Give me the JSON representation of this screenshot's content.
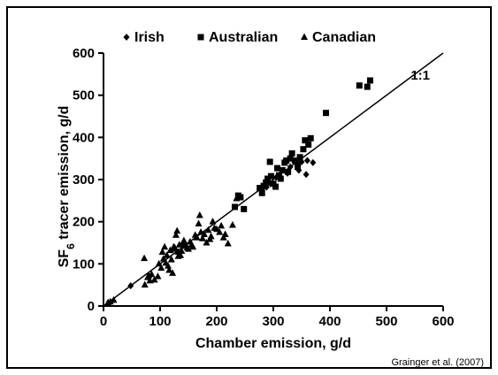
{
  "chart_data": {
    "type": "scatter",
    "xlabel": "Chamber emission, g/d",
    "ylabel_main": "SF",
    "ylabel_sub": "6",
    "ylabel_rest": " tracer emission, g/d",
    "xlim": [
      0,
      600
    ],
    "ylim": [
      0,
      600
    ],
    "xticks": [
      "0",
      "100",
      "200",
      "300",
      "400",
      "500",
      "600"
    ],
    "yticks": [
      "0",
      "100",
      "200",
      "300",
      "400",
      "500",
      "600"
    ],
    "grid": false,
    "legend_position": "top-left",
    "reference_line": {
      "label": "1:1",
      "from": [
        0,
        0
      ],
      "to": [
        600,
        600
      ]
    },
    "series": [
      {
        "name": "Irish",
        "marker": "diamond",
        "points": [
          [
            48,
            48
          ],
          [
            280,
            277
          ],
          [
            288,
            282
          ],
          [
            295,
            290
          ],
          [
            305,
            305
          ],
          [
            318,
            322
          ],
          [
            330,
            330
          ],
          [
            342,
            338
          ],
          [
            350,
            342
          ],
          [
            360,
            345
          ],
          [
            370,
            340
          ],
          [
            358,
            312
          ],
          [
            345,
            322
          ],
          [
            325,
            315
          ]
        ]
      },
      {
        "name": "Australian",
        "marker": "square",
        "points": [
          [
            232,
            235
          ],
          [
            238,
            262
          ],
          [
            242,
            258
          ],
          [
            248,
            230
          ],
          [
            276,
            280
          ],
          [
            280,
            268
          ],
          [
            283,
            285
          ],
          [
            287,
            293
          ],
          [
            290,
            302
          ],
          [
            294,
            342
          ],
          [
            296,
            308
          ],
          [
            300,
            290
          ],
          [
            304,
            283
          ],
          [
            307,
            327
          ],
          [
            310,
            310
          ],
          [
            313,
            302
          ],
          [
            316,
            322
          ],
          [
            320,
            340
          ],
          [
            323,
            345
          ],
          [
            326,
            318
          ],
          [
            330,
            350
          ],
          [
            333,
            362
          ],
          [
            338,
            345
          ],
          [
            343,
            330
          ],
          [
            347,
            353
          ],
          [
            353,
            372
          ],
          [
            356,
            393
          ],
          [
            362,
            383
          ],
          [
            366,
            398
          ],
          [
            393,
            458
          ],
          [
            452,
            523
          ],
          [
            466,
            520
          ],
          [
            471,
            535
          ]
        ]
      },
      {
        "name": "Canadian",
        "marker": "triangle",
        "points": [
          [
            8,
            8
          ],
          [
            12,
            10
          ],
          [
            18,
            14
          ],
          [
            72,
            113
          ],
          [
            73,
            50
          ],
          [
            78,
            68
          ],
          [
            80,
            72
          ],
          [
            82,
            60
          ],
          [
            85,
            75
          ],
          [
            90,
            62
          ],
          [
            98,
            100
          ],
          [
            102,
            90
          ],
          [
            104,
            128
          ],
          [
            106,
            112
          ],
          [
            108,
            140
          ],
          [
            110,
            102
          ],
          [
            112,
            120
          ],
          [
            114,
            95
          ],
          [
            116,
            85
          ],
          [
            118,
            132
          ],
          [
            120,
            110
          ],
          [
            122,
            78
          ],
          [
            124,
            140
          ],
          [
            126,
            138
          ],
          [
            128,
            168
          ],
          [
            130,
            178
          ],
          [
            132,
            128
          ],
          [
            134,
            145
          ],
          [
            136,
            120
          ],
          [
            138,
            130
          ],
          [
            140,
            148
          ],
          [
            142,
            155
          ],
          [
            145,
            142
          ],
          [
            148,
            138
          ],
          [
            150,
            135
          ],
          [
            153,
            152
          ],
          [
            156,
            145
          ],
          [
            158,
            140
          ],
          [
            162,
            168
          ],
          [
            165,
            162
          ],
          [
            168,
            195
          ],
          [
            170,
            215
          ],
          [
            172,
            175
          ],
          [
            175,
            160
          ],
          [
            178,
            170
          ],
          [
            182,
            150
          ],
          [
            185,
            180
          ],
          [
            188,
            158
          ],
          [
            190,
            165
          ],
          [
            193,
            200
          ],
          [
            196,
            185
          ],
          [
            200,
            182
          ],
          [
            205,
            175
          ],
          [
            208,
            190
          ],
          [
            212,
            162
          ],
          [
            215,
            170
          ],
          [
            220,
            148
          ],
          [
            228,
            192
          ],
          [
            235,
            255
          ],
          [
            125,
            135
          ],
          [
            132,
            118
          ],
          [
            96,
            70
          ]
        ]
      }
    ]
  },
  "citation": "Grainger et al. (2007)"
}
